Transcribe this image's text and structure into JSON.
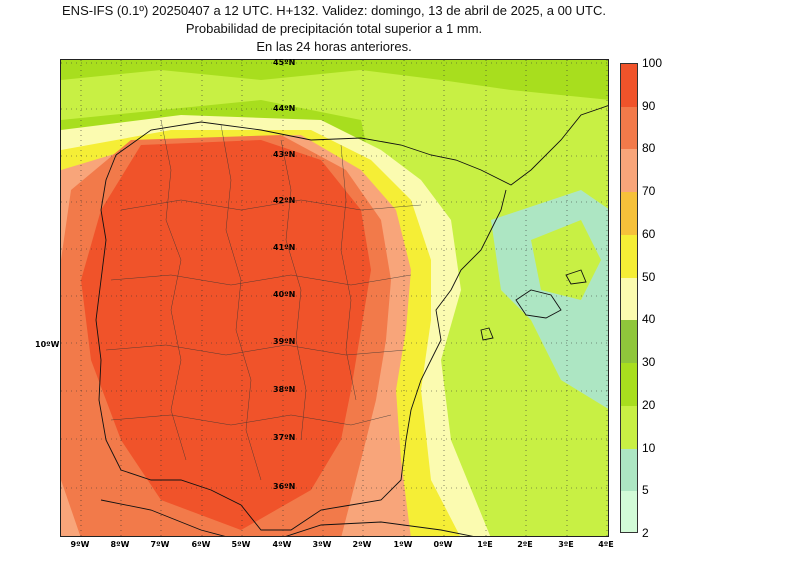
{
  "title": {
    "line1": "ENS-IFS (0.1º) 20250407 a 12 UTC. H+132. Validez: domingo, 13 de abril de 2025, a 00 UTC.",
    "line2": "Probabilidad de precipitación total superior a 1 mm.",
    "line3": "En las 24 horas anteriores."
  },
  "latitudes": [
    "45ºN",
    "44ºN",
    "43ºN",
    "42ºN",
    "41ºN",
    "40ºN",
    "39ºN",
    "38ºN",
    "37ºN",
    "36ºN"
  ],
  "longitudes": [
    "9ºW",
    "8ºW",
    "7ºW",
    "6ºW",
    "5ºW",
    "4ºW",
    "3ºW",
    "2ºW",
    "1ºW",
    "0ºW",
    "1ºE",
    "2ºE",
    "3ºE",
    "4ºE"
  ],
  "side_longitude": "10ºW",
  "colorbar": {
    "labels": [
      "100",
      "90",
      "80",
      "70",
      "60",
      "50",
      "40",
      "30",
      "20",
      "10",
      "5",
      "2"
    ],
    "colors": [
      "#f0532a",
      "#f27a4a",
      "#f8a57a",
      "#f6c13a",
      "#f5ee36",
      "#fbfbb0",
      "#8fc63b",
      "#a8de1e",
      "#c8f044",
      "#ade6c3",
      "#d2fbd7"
    ]
  }
}
